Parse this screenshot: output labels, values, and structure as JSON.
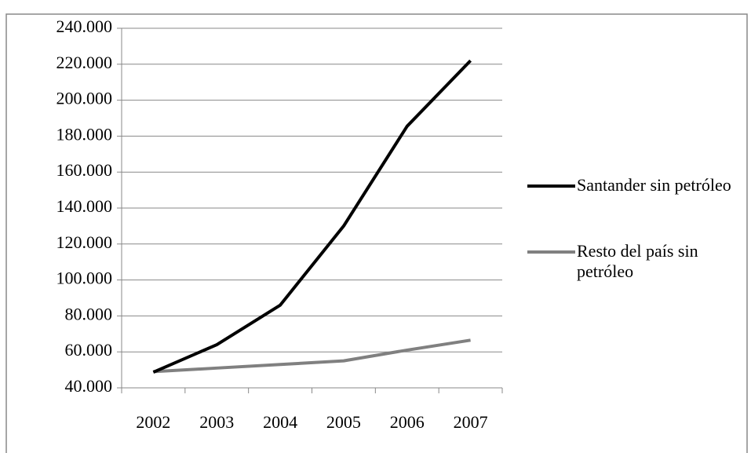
{
  "chart_data": {
    "type": "line",
    "categories": [
      "2002",
      "2003",
      "2004",
      "2005",
      "2006",
      "2007"
    ],
    "series": [
      {
        "name": "Santander sin petróleo",
        "color": "#000000",
        "values": [
          48700,
          64000,
          86000,
          130000,
          185500,
          222000
        ]
      },
      {
        "name": "Resto del país sin petróleo",
        "color": "#808080",
        "values": [
          49000,
          51000,
          53000,
          55000,
          61000,
          66500
        ]
      }
    ],
    "ylim": [
      40000,
      240000
    ],
    "yticks": [
      {
        "value": 40000,
        "label": "40.000"
      },
      {
        "value": 60000,
        "label": "60.000"
      },
      {
        "value": 80000,
        "label": "80.000"
      },
      {
        "value": 100000,
        "label": "100.000"
      },
      {
        "value": 120000,
        "label": "120.000"
      },
      {
        "value": 140000,
        "label": "140.000"
      },
      {
        "value": 160000,
        "label": "160.000"
      },
      {
        "value": 180000,
        "label": "180.000"
      },
      {
        "value": 200000,
        "label": "200.000"
      },
      {
        "value": 220000,
        "label": "220.000"
      },
      {
        "value": 240000,
        "label": "240.000"
      }
    ],
    "grid": true,
    "legend": "right"
  }
}
